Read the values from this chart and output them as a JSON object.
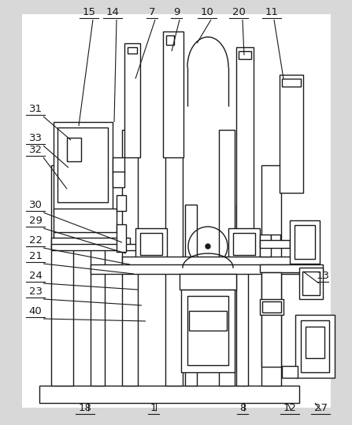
{
  "bg_color": "#d8d8d8",
  "line_color": "#1a1a1a",
  "fig_width": 4.47,
  "fig_height": 5.4,
  "lw": 1.0
}
